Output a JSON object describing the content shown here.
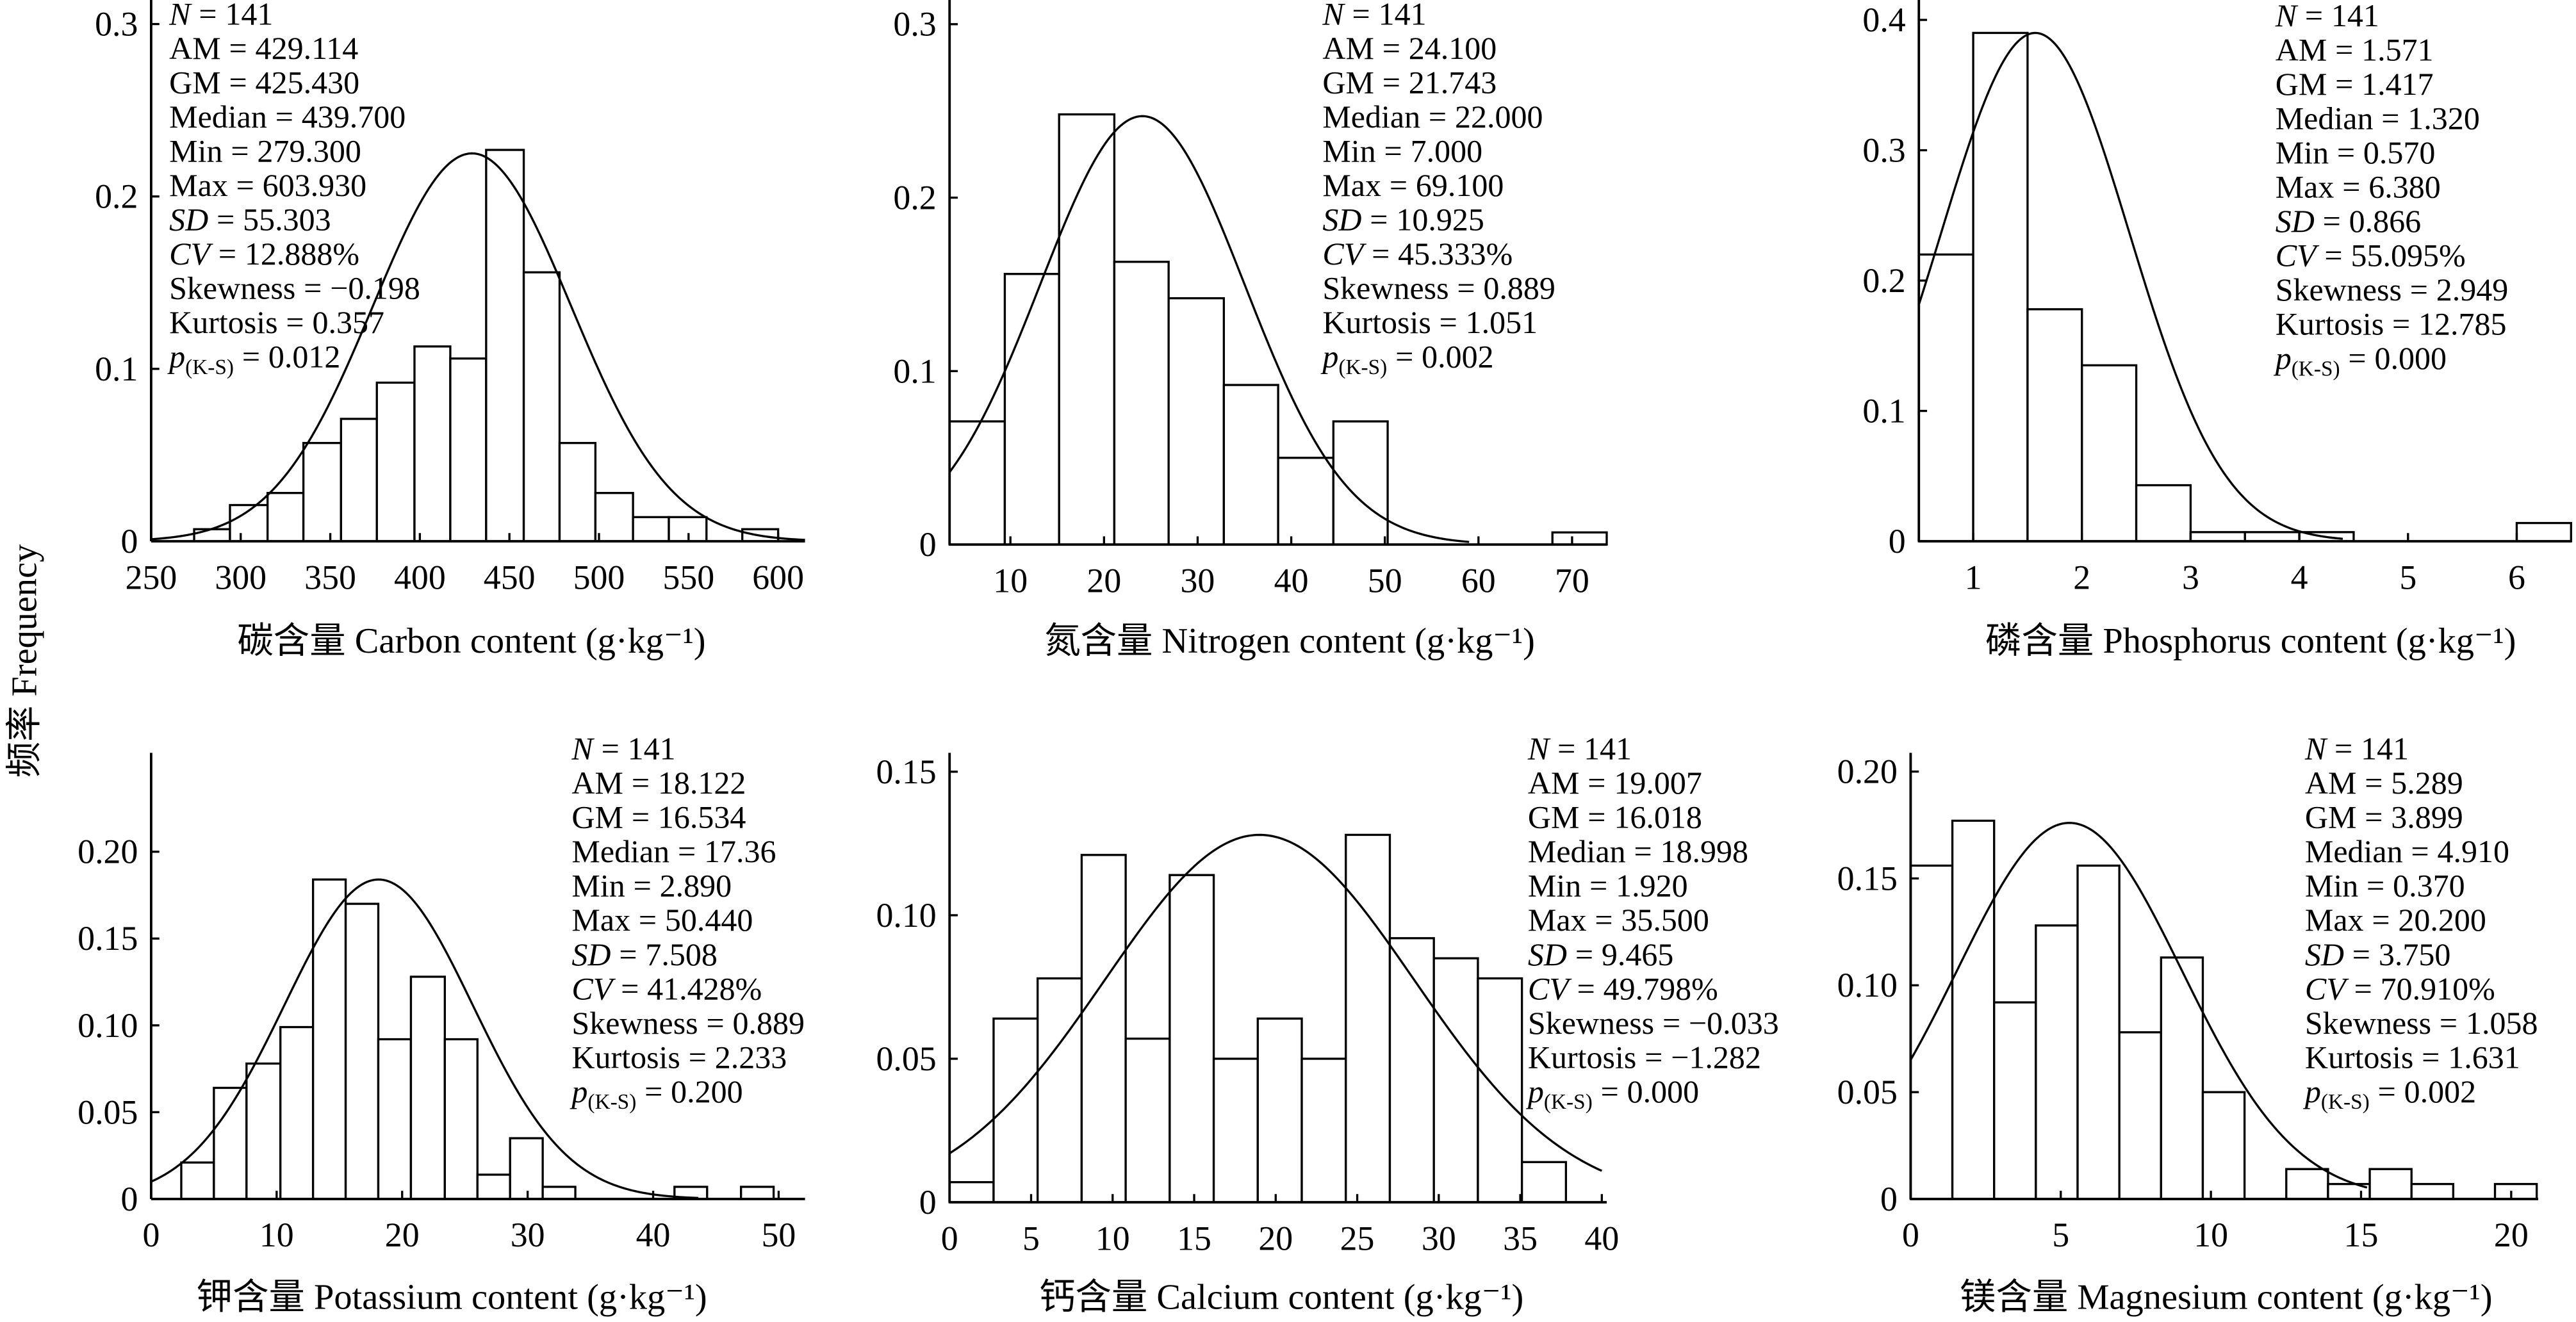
{
  "ylabel": "频率 Frequency",
  "italic_stats": [
    "N",
    "SD",
    "CV",
    "p"
  ],
  "chart_data": [
    {
      "type": "histogram",
      "xlabel": "碳含量 Carbon content (g·kg⁻¹)",
      "bins": [
        274,
        294,
        315,
        335,
        356,
        376,
        397,
        417,
        437,
        458,
        478,
        498,
        519,
        539,
        560,
        580,
        600
      ],
      "values": [
        0.007,
        0.021,
        0.028,
        0.057,
        0.071,
        0.092,
        0.113,
        0.106,
        0.227,
        0.156,
        0.057,
        0.028,
        0.014,
        0.014,
        0,
        0.007
      ],
      "xlim": [
        250,
        615
      ],
      "ylim": [
        0,
        0.313
      ],
      "xticks": [
        250,
        300,
        350,
        400,
        450,
        500,
        550,
        600
      ],
      "yticks": [
        0,
        0.1,
        0.2,
        0.3
      ],
      "curve": {
        "peak": 0.225,
        "range": [
          250,
          615
        ]
      },
      "stat_names": [
        "N",
        "AM",
        "GM",
        "Median",
        "Min",
        "Max",
        "SD",
        "CV",
        "Skewness",
        "Kurtosis",
        "p"
      ],
      "stat_sub": "(K-S)",
      "stat_sign": "=",
      "stat_values": [
        141,
        429.114,
        425.43,
        439.7,
        279.3,
        603.93,
        55.303,
        12.888,
        -0.198,
        0.357,
        0.012
      ],
      "stat_labels": [
        "141",
        "429.114",
        "425.430",
        "439.700",
        "279.300",
        "603.930",
        "55.303",
        "12.888%",
        "−0.198",
        "0.357",
        "0.012"
      ]
    },
    {
      "type": "histogram",
      "xlabel": "氮含量 Nitrogen content (g·kg⁻¹)",
      "bins": [
        3.5,
        9.4,
        15.2,
        21.1,
        26.9,
        32.8,
        38.6,
        44.5,
        50.3,
        56.2,
        62,
        67.9,
        73.7
      ],
      "values": [
        0.071,
        0.156,
        0.248,
        0.163,
        0.142,
        0.092,
        0.05,
        0.071,
        0,
        0,
        0,
        0.007
      ],
      "xlim": [
        3.5,
        73.7
      ],
      "ylim": [
        0,
        0.313
      ],
      "xticks": [
        10,
        20,
        30,
        40,
        50,
        60,
        70
      ],
      "yticks": [
        0,
        0.1,
        0.2,
        0.3
      ],
      "curve": {
        "peak": 0.247,
        "range": [
          3.5,
          59
        ]
      },
      "stat_names": [
        "N",
        "AM",
        "GM",
        "Median",
        "Min",
        "Max",
        "SD",
        "CV",
        "Skewness",
        "Kurtosis",
        "p"
      ],
      "stat_sub": "(K-S)",
      "stat_sign": "=",
      "stat_values": [
        141,
        24.1,
        21.743,
        22,
        7,
        69.1,
        10.925,
        45.333,
        0.889,
        1.051,
        0.002
      ],
      "stat_labels": [
        "141",
        "24.100",
        "21.743",
        "22.000",
        "7.000",
        "69.100",
        "10.925",
        "45.333%",
        "0.889",
        "1.051",
        "0.002"
      ]
    },
    {
      "type": "histogram",
      "xlabel": "磷含量  Phosphorus content (g·kg⁻¹)",
      "bins": [
        0.5,
        1,
        1.5,
        2,
        2.5,
        3,
        3.5,
        4,
        4.5,
        5,
        5.5,
        6,
        6.5
      ],
      "values": [
        0.22,
        0.39,
        0.178,
        0.135,
        0.043,
        0.007,
        0.007,
        0.007,
        0,
        0,
        0,
        0.014
      ],
      "xlim": [
        0.5,
        6.5
      ],
      "ylim": [
        0,
        0.414
      ],
      "xticks": [
        1,
        2,
        3,
        4,
        5,
        6
      ],
      "yticks": [
        0,
        0.1,
        0.2,
        0.3,
        0.4
      ],
      "curve": {
        "peak": 0.39,
        "range": [
          0.5,
          4.4
        ]
      },
      "stat_names": [
        "N",
        "AM",
        "GM",
        "Median",
        "Min",
        "Max",
        "SD",
        "CV",
        "Skewness",
        "Kurtosis",
        "p"
      ],
      "stat_sub": "(K-S)",
      "stat_sign": "=",
      "stat_values": [
        141,
        1.571,
        1.417,
        1.32,
        0.57,
        6.38,
        0.866,
        55.095,
        2.949,
        12.785,
        0
      ],
      "stat_labels": [
        "141",
        "1.571",
        "1.417",
        "1.320",
        "0.570",
        "6.380",
        "0.866",
        "55.095%",
        "2.949",
        "12.785",
        "0.000"
      ]
    },
    {
      "type": "histogram",
      "xlabel": "钾含量 Potassium content (g·kg⁻¹)",
      "bins": [
        2.4,
        5.0,
        7.6,
        10.3,
        12.9,
        15.5,
        18.1,
        20.7,
        23.4,
        26.0,
        28.6,
        31.2,
        33.8,
        36.5,
        39.1,
        41.7,
        44.3,
        47.0,
        49.6
      ],
      "values": [
        0.021,
        0.064,
        0.078,
        0.099,
        0.184,
        0.17,
        0.092,
        0.128,
        0.092,
        0.014,
        0.035,
        0.007,
        0,
        0,
        0,
        0.007,
        0,
        0.007
      ],
      "xlim": [
        0,
        52.1
      ],
      "ylim": [
        0,
        0.256
      ],
      "xticks": [
        0,
        10,
        20,
        30,
        40,
        50
      ],
      "yticks": [
        0,
        0.05,
        {
          "value": 0.1,
          "label": "0.10"
        },
        0.15,
        {
          "value": 0.2,
          "label": "0.20"
        }
      ],
      "curve": {
        "peak": 0.184,
        "range": [
          0,
          43.6
        ]
      },
      "stat_names": [
        "N",
        "AM",
        "GM",
        "Median",
        "Min",
        "Max",
        "SD",
        "CV",
        "Skewness",
        "Kurtosis",
        "p"
      ],
      "stat_sub": "(K-S)",
      "stat_sign": "=",
      "stat_values": [
        141,
        18.122,
        16.534,
        17.36,
        2.89,
        50.44,
        7.508,
        41.428,
        0.889,
        2.233,
        0.2
      ],
      "stat_labels": [
        "141",
        "18.122",
        "16.534",
        "17.36",
        "2.890",
        "50.440",
        "7.508",
        "41.428%",
        "0.889",
        "2.233",
        "0.200"
      ]
    },
    {
      "type": "histogram",
      "xlabel": "钙含量 Calcium content (g·kg⁻¹)",
      "bins": [
        0,
        2.7,
        5.4,
        8.1,
        10.8,
        13.5,
        16.2,
        18.9,
        21.6,
        24.3,
        27,
        29.7,
        32.4,
        35.1,
        37.8
      ],
      "values": [
        0.007,
        0.064,
        0.078,
        0.121,
        0.057,
        0.114,
        0.05,
        0.064,
        0.05,
        0.128,
        0.092,
        0.085,
        0.078,
        0.014
      ],
      "xlim": [
        0,
        40.3
      ],
      "ylim": [
        0,
        0.156
      ],
      "xticks": [
        0,
        5,
        10,
        15,
        20,
        25,
        30,
        35,
        40
      ],
      "yticks": [
        0,
        0.05,
        {
          "value": 0.1,
          "label": "0.10"
        },
        0.15
      ],
      "curve": {
        "peak": 0.128,
        "range": [
          0,
          40
        ]
      },
      "stat_names": [
        "N",
        "AM",
        "GM",
        "Median",
        "Min",
        "Max",
        "SD",
        "CV",
        "Skewness",
        "Kurtosis",
        "p"
      ],
      "stat_sub": "(K-S)",
      "stat_sign": "=",
      "stat_values": [
        141,
        19.007,
        16.018,
        18.998,
        1.92,
        35.5,
        9.465,
        49.798,
        -0.033,
        -1.282,
        0
      ],
      "stat_labels": [
        "141",
        "19.007",
        "16.018",
        "18.998",
        "1.920",
        "35.500",
        "9.465",
        "49.798%",
        "−0.033",
        "−1.282",
        "0.000"
      ]
    },
    {
      "type": "histogram",
      "xlabel": "镁含量 Magnesium content (g·kg⁻¹)",
      "bins": [
        0,
        1.39,
        2.78,
        4.17,
        5.56,
        6.95,
        8.34,
        9.73,
        11.12,
        12.51,
        13.9,
        15.29,
        16.68,
        18.07,
        19.46,
        20.85
      ],
      "values": [
        0.156,
        0.177,
        0.092,
        0.128,
        0.156,
        0.078,
        0.113,
        0.05,
        0,
        0.014,
        0.007,
        0.014,
        0.007,
        0,
        0.007
      ],
      "xlim": [
        0,
        20.9
      ],
      "ylim": [
        0,
        0.208
      ],
      "xticks": [
        0,
        5,
        10,
        15,
        20
      ],
      "yticks": [
        0,
        0.05,
        {
          "value": 0.1,
          "label": "0.10"
        },
        0.15,
        {
          "value": 0.2,
          "label": "0.20"
        }
      ],
      "curve": {
        "peak": 0.176,
        "range": [
          0,
          15.2
        ]
      },
      "stat_names": [
        "N",
        "AM",
        "GM",
        "Median",
        "Min",
        "Max",
        "SD",
        "CV",
        "Skewness",
        "Kurtosis",
        "p"
      ],
      "stat_sub": "(K-S)",
      "stat_sign": "=",
      "stat_values": [
        141,
        5.289,
        3.899,
        4.91,
        0.37,
        20.2,
        3.75,
        70.91,
        1.058,
        1.631,
        0.002
      ],
      "stat_labels": [
        "141",
        "5.289",
        "3.899",
        "4.910",
        "0.370",
        "20.200",
        "3.750",
        "70.910%",
        "1.058",
        "1.631",
        "0.002"
      ]
    }
  ]
}
